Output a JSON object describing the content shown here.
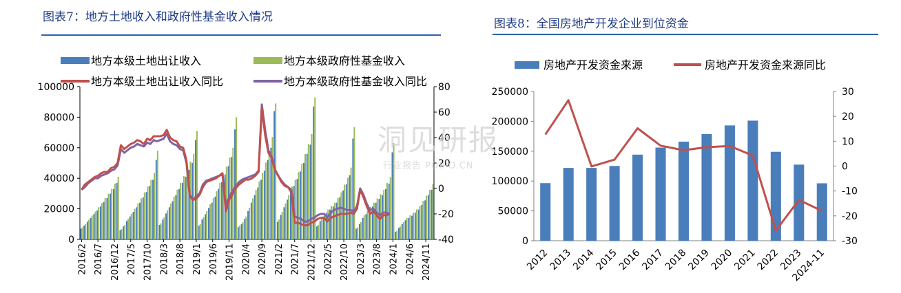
{
  "figures": {
    "left_title": "图表7：地方土地收入和政府性基金收入情况",
    "right_title": "图表8：全国房地产开发企业到位资金"
  },
  "watermark": {
    "logo_text": "洞见研报",
    "sub_text": "行业报告 POIPO.CN"
  },
  "colors": {
    "blue": "#4a7ebb",
    "green": "#9bbb59",
    "red": "#c0504d",
    "purple": "#8064a2",
    "title": "#1f3c88"
  },
  "chart_data": [
    {
      "type": "bar",
      "subtype": "monthly cumulative bars with yoy lines on secondary axis",
      "title": "图表7：地方土地收入和政府性基金收入情况",
      "x_tick_labels": [
        "2016/2",
        "2016/7",
        "2016/12",
        "2017/5",
        "2017/10",
        "2018/3",
        "2018/8",
        "2019/1",
        "2019/6",
        "2019/11",
        "2020/4",
        "2020/9",
        "2021/2",
        "2021/7",
        "2021/12",
        "2022/5",
        "2022/10",
        "2023/3",
        "2023/8",
        "2024/1",
        "2024/6",
        "2024/11"
      ],
      "ylim": [
        0,
        100000
      ],
      "yticks": [
        0,
        20000,
        40000,
        60000,
        80000,
        100000
      ],
      "y2lim": [
        -40,
        80
      ],
      "y2ticks": [
        -40,
        -20,
        0,
        20,
        40,
        60,
        80
      ],
      "legend": "top-left, two rows",
      "series": [
        {
          "name": "地方本级土地出让收入",
          "kind": "bar",
          "axis": "left",
          "color": "#4a7ebb",
          "years": [
            {
              "start": "2016/2",
              "values": [
                7000,
                9000,
                11500,
                14000,
                16500,
                19000,
                21500,
                24500,
                27000,
                30000,
                33000,
                37000
              ]
            },
            {
              "start": "2017/2",
              "values": [
                6000,
                8500,
                12000,
                15000,
                18000,
                21000,
                24000,
                27500,
                31000,
                35000,
                39000,
                52000
              ]
            },
            {
              "start": "2018/2",
              "values": [
                9500,
                13000,
                17000,
                21000,
                25000,
                29000,
                33000,
                37000,
                41000,
                45500,
                50000,
                65000
              ]
            },
            {
              "start": "2019/2",
              "values": [
                9000,
                13000,
                16500,
                20500,
                24000,
                28000,
                33000,
                37500,
                42500,
                48000,
                54000,
                72000
              ]
            },
            {
              "start": "2020/2",
              "values": [
                8000,
                10000,
                13500,
                18500,
                24000,
                29000,
                34000,
                39000,
                45000,
                52000,
                60000,
                84000
              ]
            },
            {
              "start": "2021/2",
              "values": [
                11500,
                16000,
                21000,
                26000,
                31000,
                35000,
                39500,
                44500,
                50000,
                56000,
                62000,
                87000
              ]
            },
            {
              "start": "2022/2",
              "values": [
                8500,
                12000,
                15000,
                17500,
                19500,
                21500,
                24000,
                27500,
                32000,
                36000,
                42000,
                66000
              ]
            },
            {
              "start": "2023/2",
              "values": [
                7000,
                10000,
                14000,
                16500,
                19000,
                21500,
                24000,
                26500,
                29000,
                33000,
                36500,
                57000
              ]
            },
            {
              "start": "2024/2",
              "values": [
                5000,
                7500,
                10000,
                12500,
                14000,
                15500,
                17500,
                19500,
                22500,
                25500,
                29000,
                32500
              ]
            }
          ]
        },
        {
          "name": "地方本级政府性基金收入",
          "kind": "bar",
          "axis": "left",
          "color": "#9bbb59",
          "years": [
            {
              "start": "2016/2",
              "values": [
                7800,
                10000,
                12800,
                15600,
                18200,
                21000,
                23800,
                27000,
                29800,
                33000,
                36500,
                41000
              ]
            },
            {
              "start": "2017/2",
              "values": [
                6800,
                9500,
                13400,
                16800,
                20000,
                23500,
                26800,
                30700,
                34600,
                39000,
                43500,
                58000
              ]
            },
            {
              "start": "2018/2",
              "values": [
                10500,
                14500,
                19000,
                23500,
                28000,
                32500,
                37000,
                41500,
                46000,
                51000,
                56000,
                71000
              ]
            },
            {
              "start": "2019/2",
              "values": [
                10000,
                14500,
                18500,
                23000,
                27000,
                31500,
                37000,
                42000,
                47500,
                53500,
                60000,
                80000
              ]
            },
            {
              "start": "2020/2",
              "values": [
                9000,
                11200,
                15000,
                20700,
                26800,
                32400,
                38000,
                43500,
                50200,
                58000,
                67000,
                89000
              ]
            },
            {
              "start": "2021/2",
              "values": [
                13000,
                18000,
                23500,
                29000,
                34500,
                39000,
                44000,
                49500,
                55800,
                62500,
                69000,
                93000
              ]
            },
            {
              "start": "2022/2",
              "values": [
                9500,
                13500,
                16800,
                19600,
                21800,
                24000,
                27000,
                30800,
                35800,
                40300,
                47000,
                73500
              ]
            },
            {
              "start": "2023/2",
              "values": [
                7800,
                11200,
                15700,
                18500,
                21300,
                24000,
                26800,
                29600,
                32400,
                37000,
                40800,
                63000
              ]
            },
            {
              "start": "2024/2",
              "values": [
                5600,
                8400,
                11200,
                14000,
                15700,
                17400,
                19600,
                21800,
                25200,
                28500,
                32400,
                36300
              ]
            }
          ]
        },
        {
          "name": "地方本级土地出让收入同比",
          "kind": "line",
          "axis": "right",
          "color": "#c0504d",
          "values": [
            -1,
            3,
            5,
            7,
            9,
            10,
            12,
            13,
            13,
            16,
            17,
            20,
            34,
            31,
            33,
            35,
            36,
            38,
            37,
            35,
            39,
            38,
            41,
            41,
            41,
            42,
            46,
            40,
            38,
            37,
            33,
            32,
            22,
            -5,
            -9,
            -8,
            -5,
            1,
            5,
            6,
            7,
            8,
            10,
            12,
            -18,
            -9,
            -5,
            0,
            3,
            5,
            7,
            7,
            8,
            10,
            13,
            63,
            42,
            28,
            24,
            14,
            10,
            5,
            2,
            1,
            -3,
            -27,
            -27,
            -28,
            -29,
            -29,
            -27,
            -26,
            -24,
            -23,
            -23,
            -26,
            -23,
            -22,
            -21,
            -20,
            -20,
            -20,
            -19,
            -20,
            -16,
            -1,
            -7,
            -14,
            -20,
            -18,
            -21,
            -24,
            -21,
            -21,
            -20
          ]
        },
        {
          "name": "地方本级政府性基金收入同比",
          "kind": "line",
          "axis": "right",
          "color": "#8064a2",
          "values": [
            -1,
            1,
            4,
            6,
            8,
            8,
            10,
            11,
            12,
            14,
            15,
            18,
            31,
            28,
            30,
            32,
            33,
            35,
            34,
            33,
            36,
            35,
            38,
            37,
            38,
            39,
            43,
            37,
            35,
            34,
            31,
            30,
            20,
            -6,
            -9,
            -6,
            -4,
            3,
            6,
            7,
            8,
            9,
            10,
            11,
            -13,
            -7,
            -2,
            2,
            5,
            7,
            8,
            9,
            10,
            11,
            14,
            66,
            46,
            30,
            25,
            15,
            10,
            6,
            3,
            1,
            -1,
            -22,
            -23,
            -24,
            -26,
            -26,
            -24,
            -23,
            -21,
            -20,
            -20,
            -23,
            -19,
            -17,
            -16,
            -15,
            -16,
            -17,
            -17,
            -18,
            -14,
            0,
            -5,
            -12,
            -17,
            -16,
            -19,
            -21,
            -19,
            -19,
            -20
          ]
        }
      ]
    },
    {
      "type": "bar",
      "subtype": "bar with yoy line on secondary axis",
      "title": "图表8：全国房地产开发企业到位资金",
      "categories": [
        "2012",
        "2013",
        "2014",
        "2015",
        "2016",
        "2017",
        "2018",
        "2019",
        "2020",
        "2021",
        "2022",
        "2023",
        "2024-11"
      ],
      "ylim": [
        0,
        250000
      ],
      "yticks": [
        0,
        50000,
        100000,
        150000,
        200000,
        250000
      ],
      "y2lim": [
        -30,
        30
      ],
      "y2ticks": [
        -30,
        -20,
        -10,
        0,
        10,
        20,
        30
      ],
      "legend": "top, single row",
      "series": [
        {
          "name": "房地产开发资金来源",
          "kind": "bar",
          "axis": "left",
          "color": "#4a7ebb",
          "values": [
            96500,
            122000,
            121991,
            125203,
            144214,
            156053,
            165963,
            178609,
            193115,
            201132,
            148979,
            127459,
            96183
          ]
        },
        {
          "name": "房地产开发资金来源同比",
          "kind": "line",
          "axis": "right",
          "color": "#c0504d",
          "values": [
            12.7,
            26.5,
            -0.1,
            2.6,
            15.2,
            8.2,
            6.4,
            7.6,
            8.1,
            4.2,
            -25.9,
            -13.6,
            -18.0
          ]
        }
      ]
    }
  ]
}
